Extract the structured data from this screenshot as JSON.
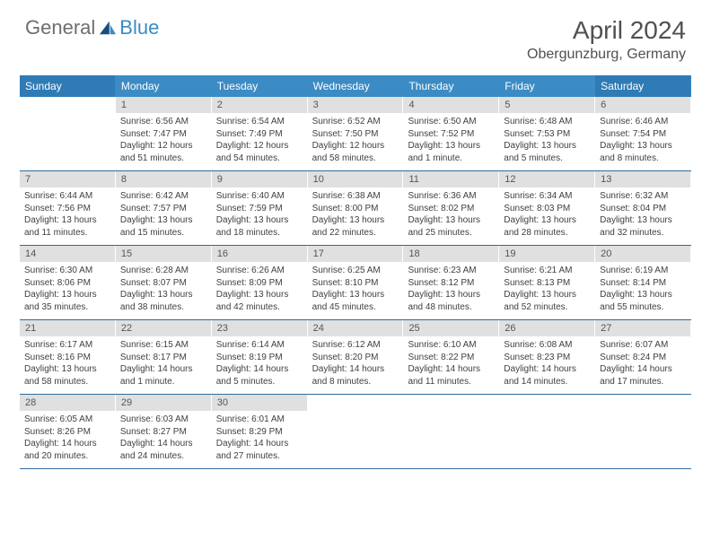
{
  "header": {
    "logo_general": "General",
    "logo_blue": "Blue",
    "month_year": "April 2024",
    "location": "Obergunzburg, Germany"
  },
  "calendar": {
    "day_names": [
      "Sunday",
      "Monday",
      "Tuesday",
      "Wednesday",
      "Thursday",
      "Friday",
      "Saturday"
    ],
    "header_bg": "#3b8bc4",
    "header_text": "#ffffff",
    "daynum_bg": "#e0e0e0",
    "border_color": "#2f6b9e",
    "weeks": [
      [
        {
          "day": "",
          "sunrise": "",
          "sunset": "",
          "daylight": ""
        },
        {
          "day": "1",
          "sunrise": "Sunrise: 6:56 AM",
          "sunset": "Sunset: 7:47 PM",
          "daylight": "Daylight: 12 hours and 51 minutes."
        },
        {
          "day": "2",
          "sunrise": "Sunrise: 6:54 AM",
          "sunset": "Sunset: 7:49 PM",
          "daylight": "Daylight: 12 hours and 54 minutes."
        },
        {
          "day": "3",
          "sunrise": "Sunrise: 6:52 AM",
          "sunset": "Sunset: 7:50 PM",
          "daylight": "Daylight: 12 hours and 58 minutes."
        },
        {
          "day": "4",
          "sunrise": "Sunrise: 6:50 AM",
          "sunset": "Sunset: 7:52 PM",
          "daylight": "Daylight: 13 hours and 1 minute."
        },
        {
          "day": "5",
          "sunrise": "Sunrise: 6:48 AM",
          "sunset": "Sunset: 7:53 PM",
          "daylight": "Daylight: 13 hours and 5 minutes."
        },
        {
          "day": "6",
          "sunrise": "Sunrise: 6:46 AM",
          "sunset": "Sunset: 7:54 PM",
          "daylight": "Daylight: 13 hours and 8 minutes."
        }
      ],
      [
        {
          "day": "7",
          "sunrise": "Sunrise: 6:44 AM",
          "sunset": "Sunset: 7:56 PM",
          "daylight": "Daylight: 13 hours and 11 minutes."
        },
        {
          "day": "8",
          "sunrise": "Sunrise: 6:42 AM",
          "sunset": "Sunset: 7:57 PM",
          "daylight": "Daylight: 13 hours and 15 minutes."
        },
        {
          "day": "9",
          "sunrise": "Sunrise: 6:40 AM",
          "sunset": "Sunset: 7:59 PM",
          "daylight": "Daylight: 13 hours and 18 minutes."
        },
        {
          "day": "10",
          "sunrise": "Sunrise: 6:38 AM",
          "sunset": "Sunset: 8:00 PM",
          "daylight": "Daylight: 13 hours and 22 minutes."
        },
        {
          "day": "11",
          "sunrise": "Sunrise: 6:36 AM",
          "sunset": "Sunset: 8:02 PM",
          "daylight": "Daylight: 13 hours and 25 minutes."
        },
        {
          "day": "12",
          "sunrise": "Sunrise: 6:34 AM",
          "sunset": "Sunset: 8:03 PM",
          "daylight": "Daylight: 13 hours and 28 minutes."
        },
        {
          "day": "13",
          "sunrise": "Sunrise: 6:32 AM",
          "sunset": "Sunset: 8:04 PM",
          "daylight": "Daylight: 13 hours and 32 minutes."
        }
      ],
      [
        {
          "day": "14",
          "sunrise": "Sunrise: 6:30 AM",
          "sunset": "Sunset: 8:06 PM",
          "daylight": "Daylight: 13 hours and 35 minutes."
        },
        {
          "day": "15",
          "sunrise": "Sunrise: 6:28 AM",
          "sunset": "Sunset: 8:07 PM",
          "daylight": "Daylight: 13 hours and 38 minutes."
        },
        {
          "day": "16",
          "sunrise": "Sunrise: 6:26 AM",
          "sunset": "Sunset: 8:09 PM",
          "daylight": "Daylight: 13 hours and 42 minutes."
        },
        {
          "day": "17",
          "sunrise": "Sunrise: 6:25 AM",
          "sunset": "Sunset: 8:10 PM",
          "daylight": "Daylight: 13 hours and 45 minutes."
        },
        {
          "day": "18",
          "sunrise": "Sunrise: 6:23 AM",
          "sunset": "Sunset: 8:12 PM",
          "daylight": "Daylight: 13 hours and 48 minutes."
        },
        {
          "day": "19",
          "sunrise": "Sunrise: 6:21 AM",
          "sunset": "Sunset: 8:13 PM",
          "daylight": "Daylight: 13 hours and 52 minutes."
        },
        {
          "day": "20",
          "sunrise": "Sunrise: 6:19 AM",
          "sunset": "Sunset: 8:14 PM",
          "daylight": "Daylight: 13 hours and 55 minutes."
        }
      ],
      [
        {
          "day": "21",
          "sunrise": "Sunrise: 6:17 AM",
          "sunset": "Sunset: 8:16 PM",
          "daylight": "Daylight: 13 hours and 58 minutes."
        },
        {
          "day": "22",
          "sunrise": "Sunrise: 6:15 AM",
          "sunset": "Sunset: 8:17 PM",
          "daylight": "Daylight: 14 hours and 1 minute."
        },
        {
          "day": "23",
          "sunrise": "Sunrise: 6:14 AM",
          "sunset": "Sunset: 8:19 PM",
          "daylight": "Daylight: 14 hours and 5 minutes."
        },
        {
          "day": "24",
          "sunrise": "Sunrise: 6:12 AM",
          "sunset": "Sunset: 8:20 PM",
          "daylight": "Daylight: 14 hours and 8 minutes."
        },
        {
          "day": "25",
          "sunrise": "Sunrise: 6:10 AM",
          "sunset": "Sunset: 8:22 PM",
          "daylight": "Daylight: 14 hours and 11 minutes."
        },
        {
          "day": "26",
          "sunrise": "Sunrise: 6:08 AM",
          "sunset": "Sunset: 8:23 PM",
          "daylight": "Daylight: 14 hours and 14 minutes."
        },
        {
          "day": "27",
          "sunrise": "Sunrise: 6:07 AM",
          "sunset": "Sunset: 8:24 PM",
          "daylight": "Daylight: 14 hours and 17 minutes."
        }
      ],
      [
        {
          "day": "28",
          "sunrise": "Sunrise: 6:05 AM",
          "sunset": "Sunset: 8:26 PM",
          "daylight": "Daylight: 14 hours and 20 minutes."
        },
        {
          "day": "29",
          "sunrise": "Sunrise: 6:03 AM",
          "sunset": "Sunset: 8:27 PM",
          "daylight": "Daylight: 14 hours and 24 minutes."
        },
        {
          "day": "30",
          "sunrise": "Sunrise: 6:01 AM",
          "sunset": "Sunset: 8:29 PM",
          "daylight": "Daylight: 14 hours and 27 minutes."
        },
        {
          "day": "",
          "sunrise": "",
          "sunset": "",
          "daylight": ""
        },
        {
          "day": "",
          "sunrise": "",
          "sunset": "",
          "daylight": ""
        },
        {
          "day": "",
          "sunrise": "",
          "sunset": "",
          "daylight": ""
        },
        {
          "day": "",
          "sunrise": "",
          "sunset": "",
          "daylight": ""
        }
      ]
    ]
  }
}
